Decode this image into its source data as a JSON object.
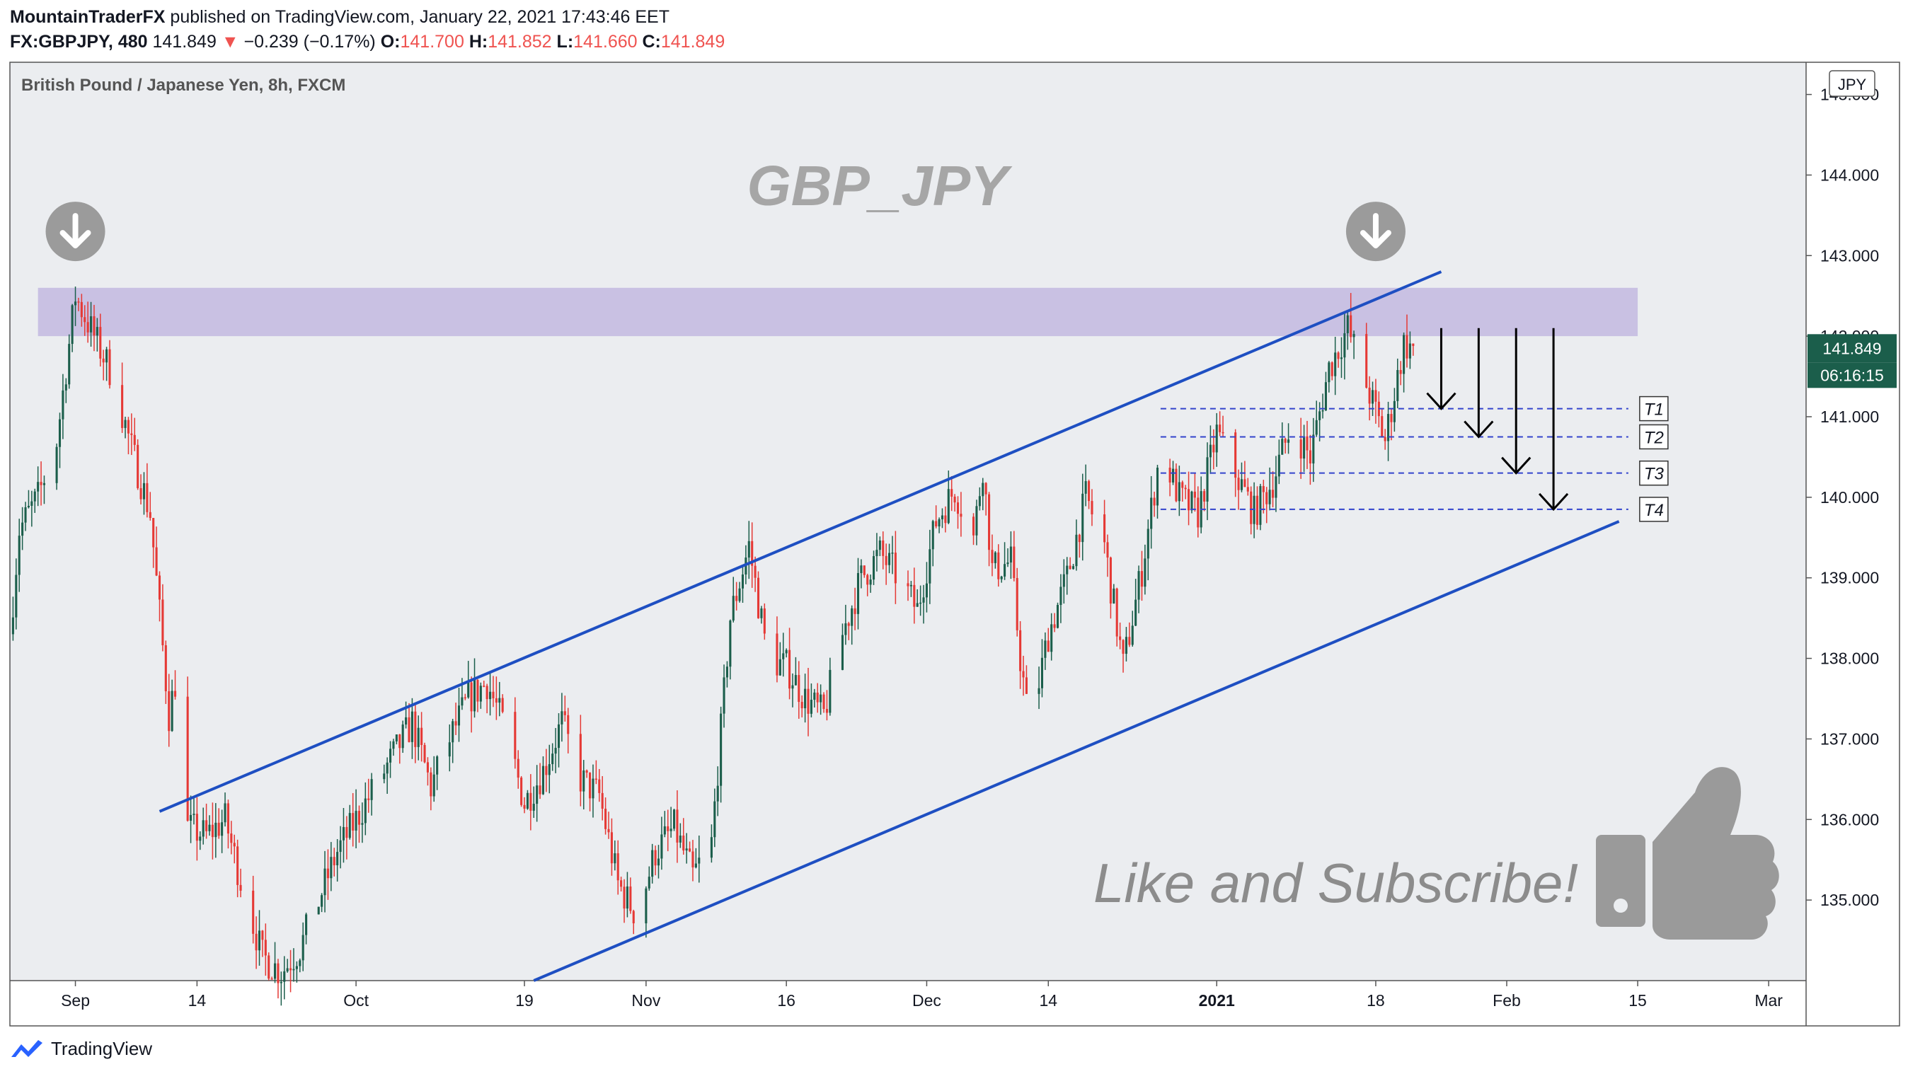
{
  "header": {
    "author": "MountainTraderFX",
    "published_text": "published on TradingView.com, January 22, 2021 17:43:46 EET"
  },
  "quote": {
    "symbol": "FX:GBPJPY, 480",
    "last": "141.849",
    "change": "−0.239 (−0.17%)",
    "open_label": "O:",
    "open": "141.700",
    "high_label": "H:",
    "high": "141.852",
    "low_label": "L:",
    "low": "141.660",
    "close_label": "C:",
    "close": "141.849"
  },
  "colors": {
    "bull": "#1b5e4b",
    "bear": "#e53935",
    "channel": "#1e4fc2",
    "zone": "#c9c1e3",
    "plot_bg": "#ebedf0",
    "target_line": "#3344cc",
    "watermark": "#a6a6a6",
    "price_badge": "#1b5e4b"
  },
  "chart_data": {
    "type": "candlestick",
    "title": "British Pound / Japanese Yen, 8h, FXCM",
    "watermark": "GBP_JPY",
    "annotation_text": "Like and Subscribe!",
    "currency": "JPY",
    "ylim": [
      134.0,
      145.4
    ],
    "y_ticks": [
      "135.000",
      "136.000",
      "137.000",
      "138.000",
      "139.000",
      "140.000",
      "141.000",
      "142.000",
      "143.000",
      "144.000",
      "145.000"
    ],
    "x_ticks": [
      {
        "label": "Sep",
        "date": "2020-09-01",
        "bold": false
      },
      {
        "label": "14",
        "date": "2020-09-14",
        "bold": false
      },
      {
        "label": "Oct",
        "date": "2020-10-01",
        "bold": false
      },
      {
        "label": "19",
        "date": "2020-10-19",
        "bold": false
      },
      {
        "label": "Nov",
        "date": "2020-11-01",
        "bold": false
      },
      {
        "label": "16",
        "date": "2020-11-16",
        "bold": false
      },
      {
        "label": "Dec",
        "date": "2020-12-01",
        "bold": false
      },
      {
        "label": "14",
        "date": "2020-12-14",
        "bold": false
      },
      {
        "label": "2021",
        "date": "2021-01-01",
        "bold": true
      },
      {
        "label": "18",
        "date": "2021-01-18",
        "bold": false
      },
      {
        "label": "Feb",
        "date": "2021-02-01",
        "bold": false
      },
      {
        "label": "15",
        "date": "2021-02-15",
        "bold": false
      },
      {
        "label": "Mar",
        "date": "2021-03-01",
        "bold": false
      }
    ],
    "xlim": [
      "2020-08-25",
      "2021-03-05"
    ],
    "price_path": [
      [
        "2020-08-25",
        138.3
      ],
      [
        "2020-08-26",
        139.6
      ],
      [
        "2020-08-28",
        140.0
      ],
      [
        "2020-08-30",
        140.7
      ],
      [
        "2020-09-01",
        142.5
      ],
      [
        "2020-09-03",
        142.0
      ],
      [
        "2020-09-05",
        141.5
      ],
      [
        "2020-09-07",
        140.6
      ],
      [
        "2020-09-09",
        139.8
      ],
      [
        "2020-09-11",
        137.3
      ],
      [
        "2020-09-12",
        137.9
      ],
      [
        "2020-09-13",
        135.9
      ],
      [
        "2020-09-15",
        135.8
      ],
      [
        "2020-09-17",
        136.0
      ],
      [
        "2020-09-19",
        135.1
      ],
      [
        "2020-09-21",
        134.3
      ],
      [
        "2020-09-23",
        134.1
      ],
      [
        "2020-09-25",
        134.4
      ],
      [
        "2020-09-27",
        135.0
      ],
      [
        "2020-09-29",
        135.6
      ],
      [
        "2020-10-01",
        136.0
      ],
      [
        "2020-10-03",
        136.4
      ],
      [
        "2020-10-05",
        136.8
      ],
      [
        "2020-10-07",
        137.2
      ],
      [
        "2020-10-09",
        136.4
      ],
      [
        "2020-10-11",
        137.0
      ],
      [
        "2020-10-13",
        137.5
      ],
      [
        "2020-10-15",
        137.7
      ],
      [
        "2020-10-17",
        137.1
      ],
      [
        "2020-10-19",
        136.2
      ],
      [
        "2020-10-21",
        136.6
      ],
      [
        "2020-10-23",
        137.2
      ],
      [
        "2020-10-25",
        136.5
      ],
      [
        "2020-10-27",
        136.3
      ],
      [
        "2020-10-29",
        135.2
      ],
      [
        "2020-10-31",
        134.8
      ],
      [
        "2020-11-02",
        135.6
      ],
      [
        "2020-11-04",
        135.9
      ],
      [
        "2020-11-06",
        135.3
      ],
      [
        "2020-11-08",
        135.7
      ],
      [
        "2020-11-10",
        138.5
      ],
      [
        "2020-11-12",
        139.4
      ],
      [
        "2020-11-14",
        138.0
      ],
      [
        "2020-11-16",
        137.9
      ],
      [
        "2020-11-18",
        137.5
      ],
      [
        "2020-11-20",
        137.3
      ],
      [
        "2020-11-22",
        138.3
      ],
      [
        "2020-11-24",
        139.0
      ],
      [
        "2020-11-26",
        139.3
      ],
      [
        "2020-11-28",
        139.0
      ],
      [
        "2020-11-30",
        138.6
      ],
      [
        "2020-12-02",
        139.7
      ],
      [
        "2020-12-04",
        140.1
      ],
      [
        "2020-12-06",
        139.5
      ],
      [
        "2020-12-07",
        140.4
      ],
      [
        "2020-12-08",
        139.1
      ],
      [
        "2020-12-10",
        139.2
      ],
      [
        "2020-12-11",
        138.0
      ],
      [
        "2020-12-12",
        137.1
      ],
      [
        "2020-12-14",
        138.3
      ],
      [
        "2020-12-16",
        139.0
      ],
      [
        "2020-12-18",
        140.0
      ],
      [
        "2020-12-20",
        139.4
      ],
      [
        "2020-12-22",
        137.9
      ],
      [
        "2020-12-24",
        139.1
      ],
      [
        "2020-12-26",
        140.6
      ],
      [
        "2020-12-28",
        140.0
      ],
      [
        "2020-12-30",
        139.8
      ],
      [
        "2021-01-01",
        140.8
      ],
      [
        "2021-01-03",
        140.3
      ],
      [
        "2021-01-05",
        139.8
      ],
      [
        "2021-01-07",
        140.2
      ],
      [
        "2021-01-09",
        140.9
      ],
      [
        "2021-01-11",
        140.5
      ],
      [
        "2021-01-13",
        141.6
      ],
      [
        "2021-01-15",
        142.1
      ],
      [
        "2021-01-17",
        141.4
      ],
      [
        "2021-01-19",
        140.7
      ],
      [
        "2021-01-20",
        141.3
      ],
      [
        "2021-01-21",
        141.9
      ],
      [
        "2021-01-22",
        141.849
      ]
    ],
    "resistance_zone": {
      "from": "2020-08-28",
      "to": "2021-02-15",
      "y_low": 142.0,
      "y_high": 142.6
    },
    "channel_upper": [
      [
        "2020-09-10",
        136.1
      ],
      [
        "2021-01-25",
        142.8
      ]
    ],
    "channel_lower": [
      [
        "2020-10-20",
        134.0
      ],
      [
        "2021-02-13",
        139.7
      ]
    ],
    "targets": [
      {
        "label": "T1",
        "value": 141.1
      },
      {
        "label": "T2",
        "value": 140.75
      },
      {
        "label": "T3",
        "value": 140.3
      },
      {
        "label": "T4",
        "value": 139.85
      }
    ],
    "target_arrows": [
      {
        "date": "2021-01-25",
        "from": 142.1,
        "to": 141.1
      },
      {
        "date": "2021-01-29",
        "from": 142.1,
        "to": 140.75
      },
      {
        "date": "2021-02-02",
        "from": 142.1,
        "to": 140.3
      },
      {
        "date": "2021-02-06",
        "from": 142.1,
        "to": 139.85
      }
    ],
    "down_markers": [
      {
        "date": "2020-09-01",
        "value": 143.3
      },
      {
        "date": "2021-01-18",
        "value": 143.3
      }
    ],
    "last_price_label": "141.849",
    "countdown_label": "06:16:15",
    "legend": "none"
  },
  "footer": {
    "brand": "TradingView"
  }
}
